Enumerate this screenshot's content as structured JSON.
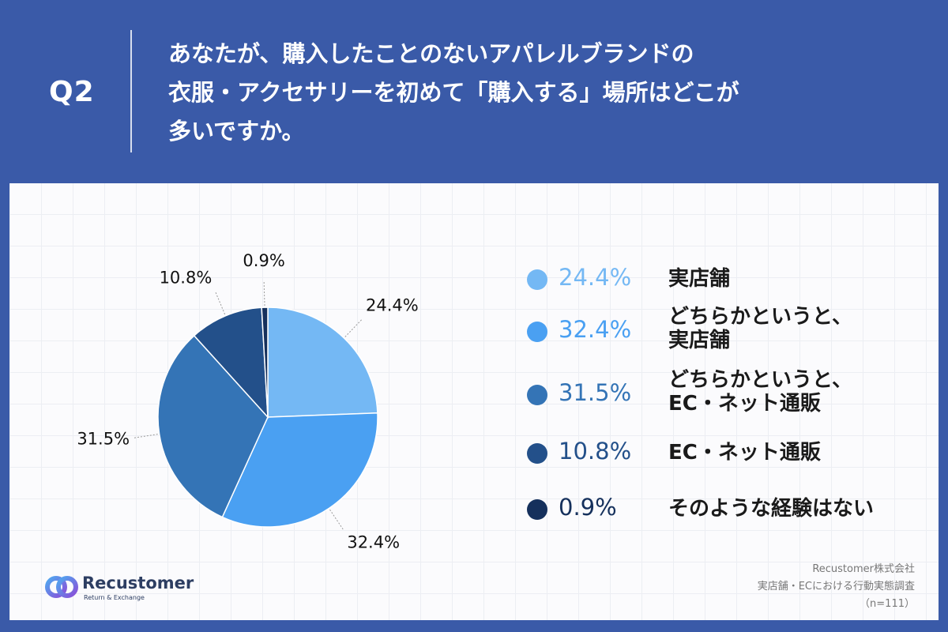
{
  "header": {
    "q_label": "Q2",
    "question_lines": [
      "あなたが、購入したことのないアパレルブランドの",
      "衣服・アクセサリーを初めて「購入する」場所はどこが",
      "多いですか。"
    ]
  },
  "chart_data": {
    "type": "pie",
    "values": [
      24.4,
      32.4,
      31.5,
      10.8,
      0.9
    ],
    "data_labels": [
      "24.4%",
      "32.4%",
      "31.5%",
      "10.8%",
      "0.9%"
    ],
    "colors": [
      "#74b8f4",
      "#4aa0f2",
      "#3474b6",
      "#23508a",
      "#15305c"
    ],
    "legend": [
      {
        "pct": "24.4%",
        "label_lines": [
          "実店舗"
        ],
        "color": "#74b8f4",
        "text_color": "#74b8f4"
      },
      {
        "pct": "32.4%",
        "label_lines": [
          "どちらかというと、",
          "実店舗"
        ],
        "color": "#4aa0f2",
        "text_color": "#4aa0f2"
      },
      {
        "pct": "31.5%",
        "label_lines": [
          "どちらかというと、",
          "EC・ネット通販"
        ],
        "color": "#3474b6",
        "text_color": "#3474b6"
      },
      {
        "pct": "10.8%",
        "label_lines": [
          "EC・ネット通販"
        ],
        "color": "#23508a",
        "text_color": "#23508a"
      },
      {
        "pct": "0.9%",
        "label_lines": [
          "そのような経験はない"
        ],
        "color": "#15305c",
        "text_color": "#15305c"
      }
    ],
    "legend_placement": "right"
  },
  "logo": {
    "name": "Recustomer",
    "tagline": "Return & Exchange"
  },
  "source": {
    "company": "Recustomer株式会社",
    "survey": "実店舗・ECにおける行動実態調査",
    "sample": "（n=111）"
  }
}
